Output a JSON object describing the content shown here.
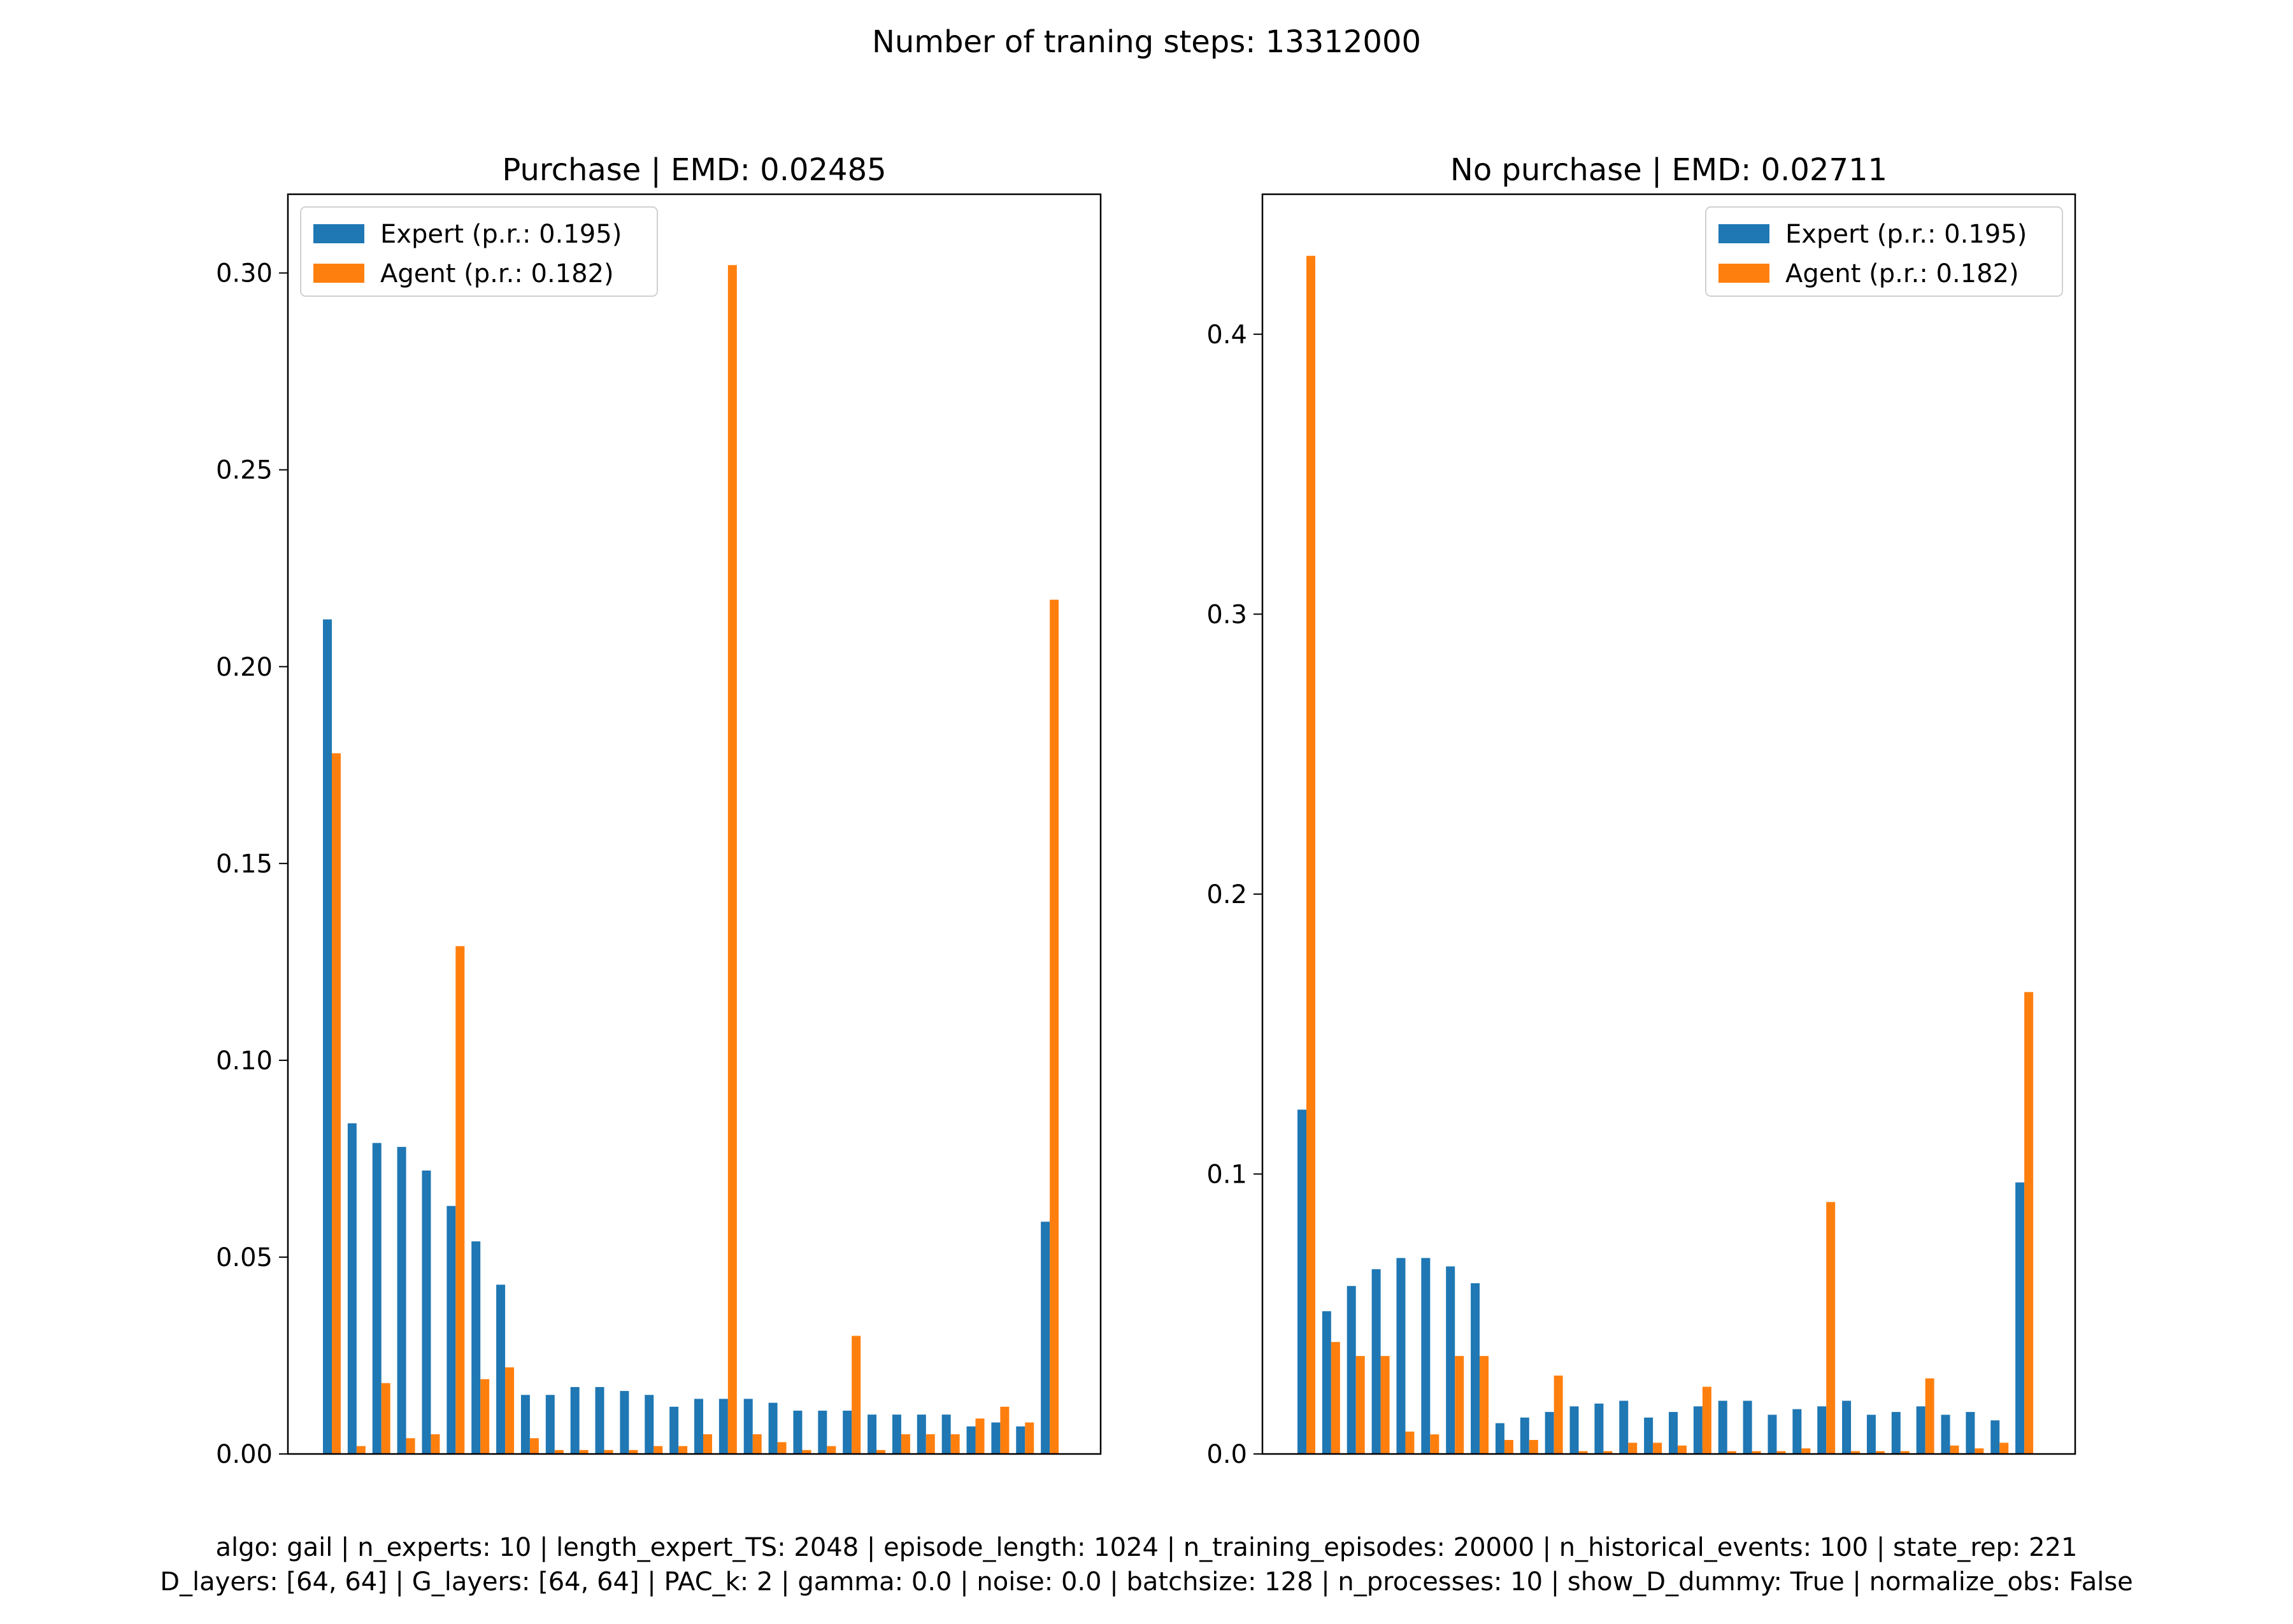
{
  "suptitle": "Number of traning steps: 13312000",
  "footer": {
    "line1": "algo: gail | n_experts: 10 | length_expert_TS: 2048 | episode_length: 1024 | n_training_episodes: 20000 | n_historical_events: 100 | state_rep: 221",
    "line2": "D_layers: [64, 64] | G_layers: [64, 64] | PAC_k: 2 | gamma: 0.0 | noise: 0.0 | batchsize: 128 | n_processes: 10 | show_D_dummy: True | normalize_obs: False"
  },
  "colors": {
    "expert": "#1f77b4",
    "agent": "#ff7f0e"
  },
  "chart_data": [
    {
      "type": "bar",
      "title": "Purchase | EMD: 0.02485",
      "xlabel": "",
      "ylabel": "",
      "ylim": [
        0,
        0.32
      ],
      "yticks": [
        "0.00",
        "0.05",
        "0.10",
        "0.15",
        "0.20",
        "0.25",
        "0.30"
      ],
      "ytick_values": [
        0,
        0.05,
        0.1,
        0.15,
        0.2,
        0.25,
        0.3
      ],
      "legend_position": "top-left",
      "series": [
        {
          "name": "Expert (p.r.: 0.195)",
          "color": "#1f77b4",
          "values": [
            0.212,
            0.084,
            0.079,
            0.078,
            0.072,
            0.063,
            0.054,
            0.043,
            0.015,
            0.015,
            0.017,
            0.017,
            0.016,
            0.015,
            0.012,
            0.014,
            0.014,
            0.014,
            0.013,
            0.011,
            0.011,
            0.011,
            0.01,
            0.01,
            0.01,
            0.01,
            0.007,
            0.008,
            0.007,
            0.059
          ]
        },
        {
          "name": "Agent (p.r.: 0.182)",
          "color": "#ff7f0e",
          "values": [
            0.178,
            0.002,
            0.018,
            0.004,
            0.005,
            0.129,
            0.019,
            0.022,
            0.004,
            0.001,
            0.001,
            0.001,
            0.001,
            0.002,
            0.002,
            0.005,
            0.302,
            0.005,
            0.003,
            0.001,
            0.002,
            0.03,
            0.001,
            0.005,
            0.005,
            0.005,
            0.009,
            0.012,
            0.008,
            0.217
          ]
        }
      ]
    },
    {
      "type": "bar",
      "title": "No purchase | EMD: 0.02711",
      "xlabel": "",
      "ylabel": "",
      "ylim": [
        0,
        0.45
      ],
      "yticks": [
        "0.0",
        "0.1",
        "0.2",
        "0.3",
        "0.4"
      ],
      "ytick_values": [
        0,
        0.1,
        0.2,
        0.3,
        0.4
      ],
      "legend_position": "top-right",
      "series": [
        {
          "name": "Expert (p.r.: 0.195)",
          "color": "#1f77b4",
          "values": [
            0.123,
            0.051,
            0.06,
            0.066,
            0.07,
            0.07,
            0.067,
            0.061,
            0.011,
            0.013,
            0.015,
            0.017,
            0.018,
            0.019,
            0.013,
            0.015,
            0.017,
            0.019,
            0.019,
            0.014,
            0.016,
            0.017,
            0.019,
            0.014,
            0.015,
            0.017,
            0.014,
            0.015,
            0.012,
            0.097
          ]
        },
        {
          "name": "Agent (p.r.: 0.182)",
          "color": "#ff7f0e",
          "values": [
            0.428,
            0.04,
            0.035,
            0.035,
            0.008,
            0.007,
            0.035,
            0.035,
            0.005,
            0.005,
            0.028,
            0.001,
            0.001,
            0.004,
            0.004,
            0.003,
            0.024,
            0.001,
            0.001,
            0.001,
            0.002,
            0.09,
            0.001,
            0.001,
            0.001,
            0.027,
            0.003,
            0.002,
            0.004,
            0.165
          ]
        }
      ]
    }
  ]
}
